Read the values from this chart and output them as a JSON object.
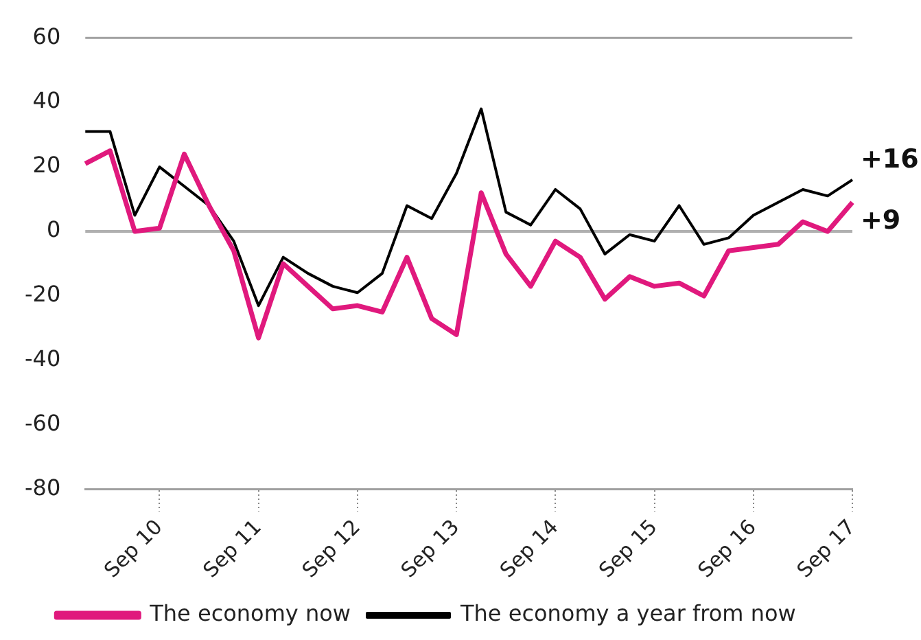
{
  "chart_data": {
    "type": "line",
    "categories": [
      null,
      null,
      null,
      "Sep 10",
      null,
      null,
      null,
      "Sep 11",
      null,
      null,
      null,
      "Sep 12",
      null,
      null,
      null,
      "Sep 13",
      null,
      null,
      null,
      "Sep 14",
      null,
      null,
      null,
      "Sep 15",
      null,
      null,
      null,
      "Sep 16",
      null,
      null,
      null,
      "Sep 17"
    ],
    "series": [
      {
        "name": "The economy now",
        "color": "#e0197d",
        "values": [
          21,
          25,
          0,
          1,
          24,
          8,
          -6,
          -33,
          -10,
          -17,
          -24,
          -23,
          -25,
          -8,
          -27,
          -32,
          12,
          -7,
          -17,
          -3,
          -8,
          -21,
          -14,
          -17,
          -16,
          -20,
          -6,
          -5,
          -4,
          3,
          0,
          9
        ]
      },
      {
        "name": "The economy a year from now",
        "color": "#000000",
        "values": [
          31,
          31,
          5,
          20,
          14,
          8,
          -3,
          -23,
          -8,
          -13,
          -17,
          -19,
          -13,
          8,
          4,
          18,
          38,
          6,
          2,
          13,
          7,
          -7,
          -1,
          -3,
          8,
          -4,
          -2,
          5,
          9,
          13,
          11,
          16
        ]
      }
    ],
    "ylim": [
      -80,
      60
    ],
    "yticks": [
      -80,
      -60,
      -40,
      -20,
      0,
      20,
      40,
      60
    ],
    "grid": false,
    "legend": "bottom",
    "marker": "none",
    "line_style": "solid",
    "ref_lines": [
      {
        "axis": "y",
        "value": 0,
        "color": "#b0b0b0"
      }
    ],
    "annotations": [
      {
        "text": "+16",
        "x": "Sep 17",
        "y": 16
      },
      {
        "text": "+9",
        "x": "Sep 17",
        "y": 9
      }
    ]
  }
}
